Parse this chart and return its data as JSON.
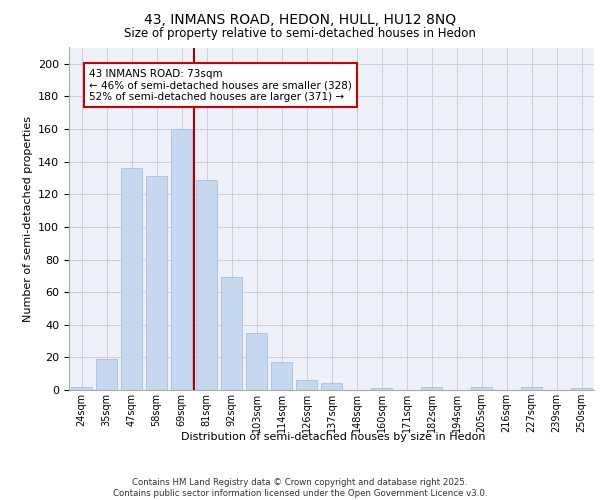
{
  "title1": "43, INMANS ROAD, HEDON, HULL, HU12 8NQ",
  "title2": "Size of property relative to semi-detached houses in Hedon",
  "xlabel": "Distribution of semi-detached houses by size in Hedon",
  "ylabel": "Number of semi-detached properties",
  "categories": [
    "24sqm",
    "35sqm",
    "47sqm",
    "58sqm",
    "69sqm",
    "81sqm",
    "92sqm",
    "103sqm",
    "114sqm",
    "126sqm",
    "137sqm",
    "148sqm",
    "160sqm",
    "171sqm",
    "182sqm",
    "194sqm",
    "205sqm",
    "216sqm",
    "227sqm",
    "239sqm",
    "250sqm"
  ],
  "values": [
    2,
    19,
    136,
    131,
    160,
    129,
    69,
    35,
    17,
    6,
    4,
    0,
    1,
    0,
    2,
    0,
    2,
    0,
    2,
    0,
    1
  ],
  "bar_color": "#c5d8f0",
  "bar_edge_color": "#a0b8d8",
  "vline_color": "#aa0000",
  "annotation_text": "43 INMANS ROAD: 73sqm\n← 46% of semi-detached houses are smaller (328)\n52% of semi-detached houses are larger (371) →",
  "annotation_box_color": "#ffffff",
  "annotation_box_edge": "#cc0000",
  "footer": "Contains HM Land Registry data © Crown copyright and database right 2025.\nContains public sector information licensed under the Open Government Licence v3.0.",
  "ylim": [
    0,
    210
  ],
  "yticks": [
    0,
    20,
    40,
    60,
    80,
    100,
    120,
    140,
    160,
    180,
    200
  ],
  "bg_color": "#eef1fa",
  "grid_color": "#ccccdd"
}
